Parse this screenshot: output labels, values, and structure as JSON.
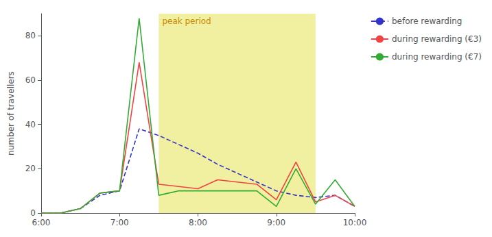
{
  "chart_data": {
    "type": "line",
    "ylabel": "number of travellers",
    "x": [
      6.0,
      6.25,
      6.5,
      6.75,
      7.0,
      7.25,
      7.5,
      7.75,
      8.0,
      8.25,
      8.5,
      8.75,
      9.0,
      9.25,
      9.5,
      9.75,
      10.0
    ],
    "xlim": [
      6.0,
      10.0
    ],
    "xticks": [
      {
        "value": 6.0,
        "label": "6:00"
      },
      {
        "value": 7.0,
        "label": "7:00"
      },
      {
        "value": 8.0,
        "label": "8:00"
      },
      {
        "value": 9.0,
        "label": "9:00"
      },
      {
        "value": 10.0,
        "label": "10:00"
      }
    ],
    "ylim": [
      0,
      90
    ],
    "yticks": [
      0,
      20,
      40,
      60,
      80
    ],
    "grid": false,
    "legend": "right",
    "annotations": [
      {
        "text": "peak period",
        "x_start": 7.5,
        "x_end": 9.5,
        "color": "#f0f0a0",
        "label_color": "#cc8800"
      }
    ],
    "series": [
      {
        "name": "before rewarding",
        "color": "#3333cc",
        "line_style": "dashed",
        "values": [
          0,
          0,
          2,
          8,
          10,
          38,
          35,
          31,
          27,
          22,
          18,
          14,
          10,
          8,
          7,
          8,
          3
        ]
      },
      {
        "name": "during rewarding (€3)",
        "color": "#ee4444",
        "line_style": "solid",
        "values": [
          0,
          0,
          2,
          9,
          10,
          68,
          13,
          12,
          11,
          15,
          14,
          13,
          6,
          23,
          5,
          8,
          3
        ]
      },
      {
        "name": "during rewarding (€7)",
        "color": "#33aa33",
        "line_style": "solid",
        "values": [
          0,
          0,
          2,
          9,
          10,
          88,
          8,
          10,
          10,
          10,
          10,
          10,
          3,
          20,
          4,
          15,
          3
        ]
      }
    ]
  }
}
